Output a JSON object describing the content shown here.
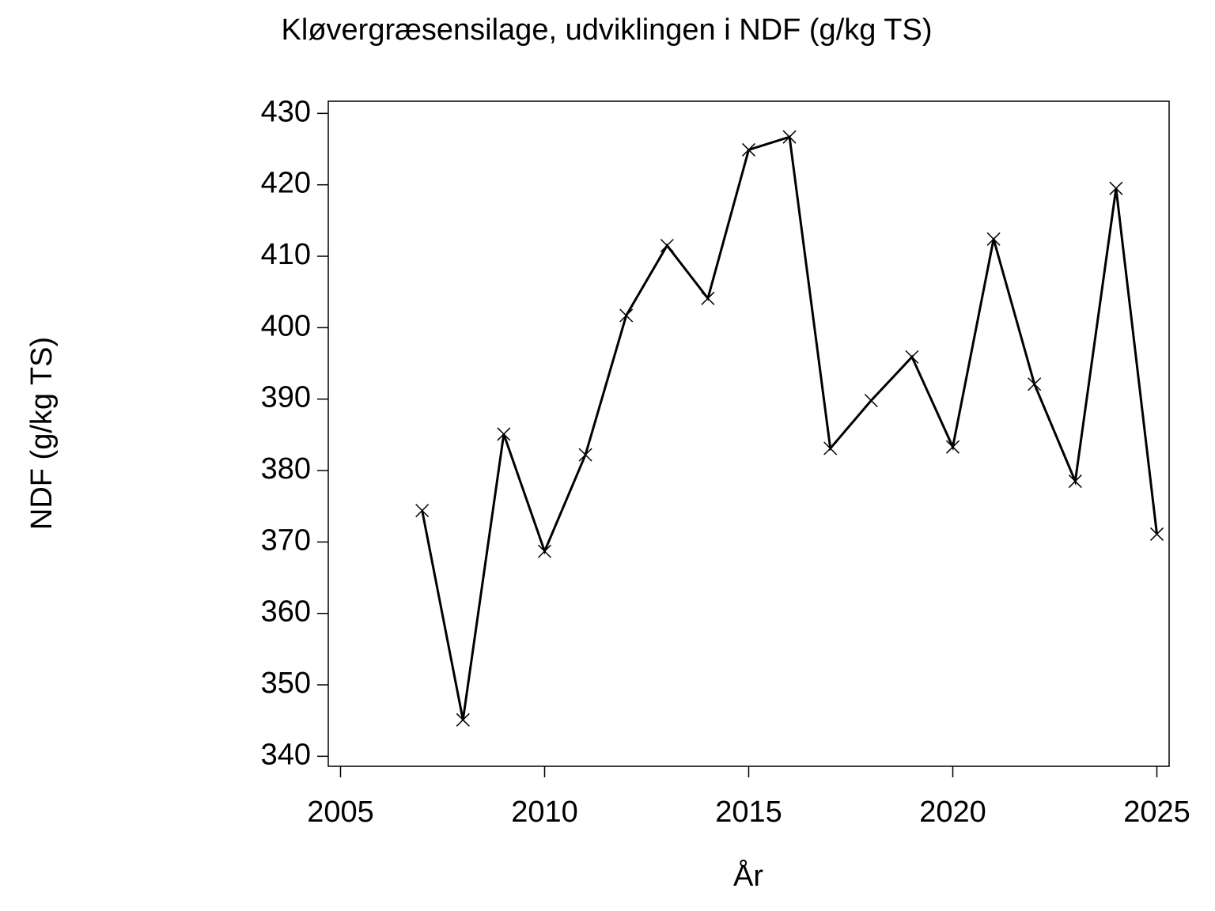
{
  "chart_data": {
    "type": "line",
    "title": "Kløvergræsensilage,  udviklingen  i  NDF  (g/kg  TS)",
    "x_label": "År",
    "y_label": "NDF  (g/kg  TS)",
    "x": [
      2007,
      2008,
      2009,
      2010,
      2011,
      2012,
      2013,
      2014,
      2015,
      2016,
      2017,
      2018,
      2019,
      2020,
      2021,
      2022,
      2023,
      2024,
      2025
    ],
    "series": [
      {
        "color": "#000000",
        "marker": "x",
        "values": [
          374.4,
          345.1,
          385.1,
          368.7,
          382.2,
          401.7,
          411.5,
          404.1,
          424.9,
          426.7,
          383.1,
          389.8,
          395.9,
          383.3,
          412.4,
          392.1,
          378.5,
          419.5,
          371.1
        ]
      }
    ],
    "xlim": [
      2004.7,
      2025.3
    ],
    "xticks": [
      2005,
      2010,
      2015,
      2020,
      2025
    ],
    "ylim": [
      338.6,
      431.7
    ],
    "yticks": [
      340,
      350,
      360,
      370,
      380,
      390,
      400,
      410,
      420,
      430
    ],
    "grid": false
  }
}
